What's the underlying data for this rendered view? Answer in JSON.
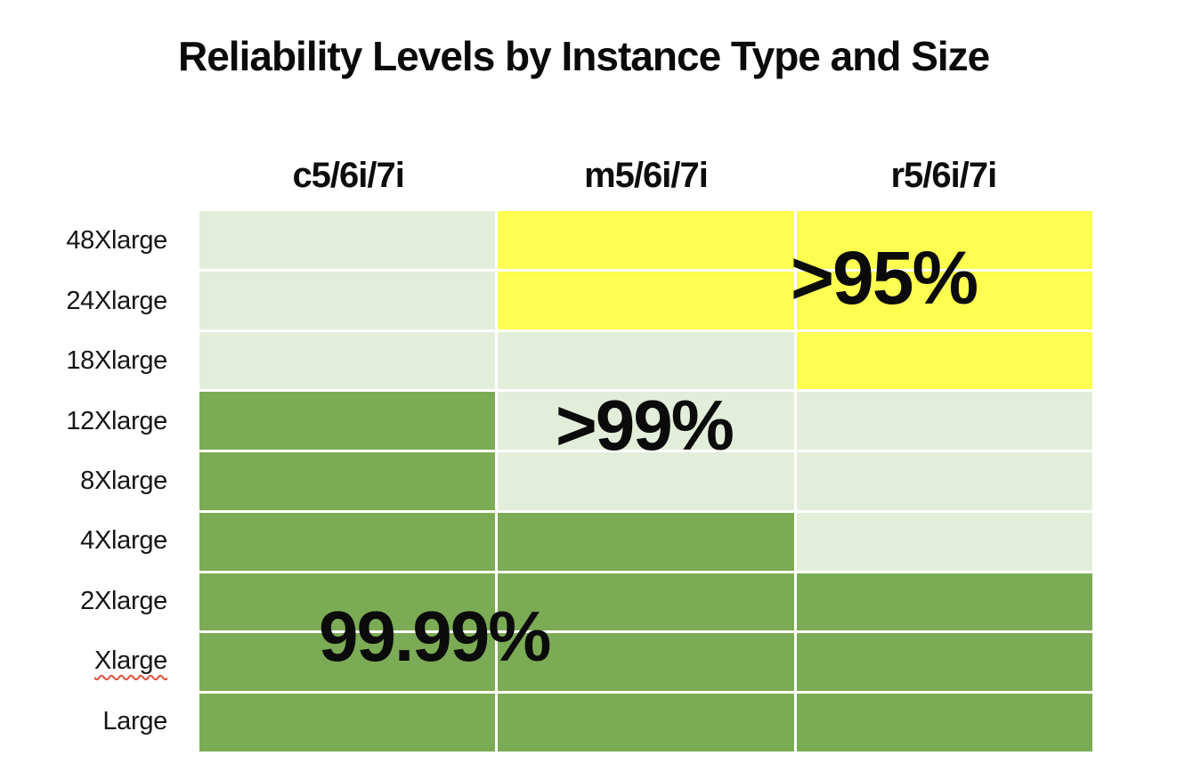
{
  "chart_data": {
    "type": "heatmap",
    "title": "Reliability Levels by Instance Type and Size",
    "columns": [
      "c5/6i/7i",
      "m5/6i/7i",
      "r5/6i/7i"
    ],
    "rows": [
      "48Xlarge",
      "24Xlarge",
      "18Xlarge",
      "12Xlarge",
      "8Xlarge",
      "4Xlarge",
      "2Xlarge",
      "Xlarge",
      "Large"
    ],
    "cells": [
      [
        ">99%",
        ">95%",
        ">95%"
      ],
      [
        ">99%",
        ">95%",
        ">95%"
      ],
      [
        ">99%",
        ">99%",
        ">95%"
      ],
      [
        "99.99%",
        ">99%",
        ">99%"
      ],
      [
        "99.99%",
        ">99%",
        ">99%"
      ],
      [
        "99.99%",
        "99.99%",
        ">99%"
      ],
      [
        "99.99%",
        "99.99%",
        "99.99%"
      ],
      [
        "99.99%",
        "99.99%",
        "99.99%"
      ],
      [
        "99.99%",
        "99.99%",
        "99.99%"
      ]
    ],
    "level_colors": {
      ">95%": "#fdff50",
      ">99%": "#e3eeda",
      "99.99%": "#7cab55"
    },
    "annotations": [
      {
        "text": ">95%",
        "level": ">95%"
      },
      {
        "text": ">99%",
        "level": ">99%"
      },
      {
        "text": "99.99%",
        "level": "99.99%"
      }
    ],
    "spellcheck_underline_row": "Xlarge",
    "layout_hints": {
      "grid": "3 columns x 9 rows",
      "gridlines": "white gaps between cells",
      "legend": "none; values shown as large in-grid annotations"
    }
  }
}
